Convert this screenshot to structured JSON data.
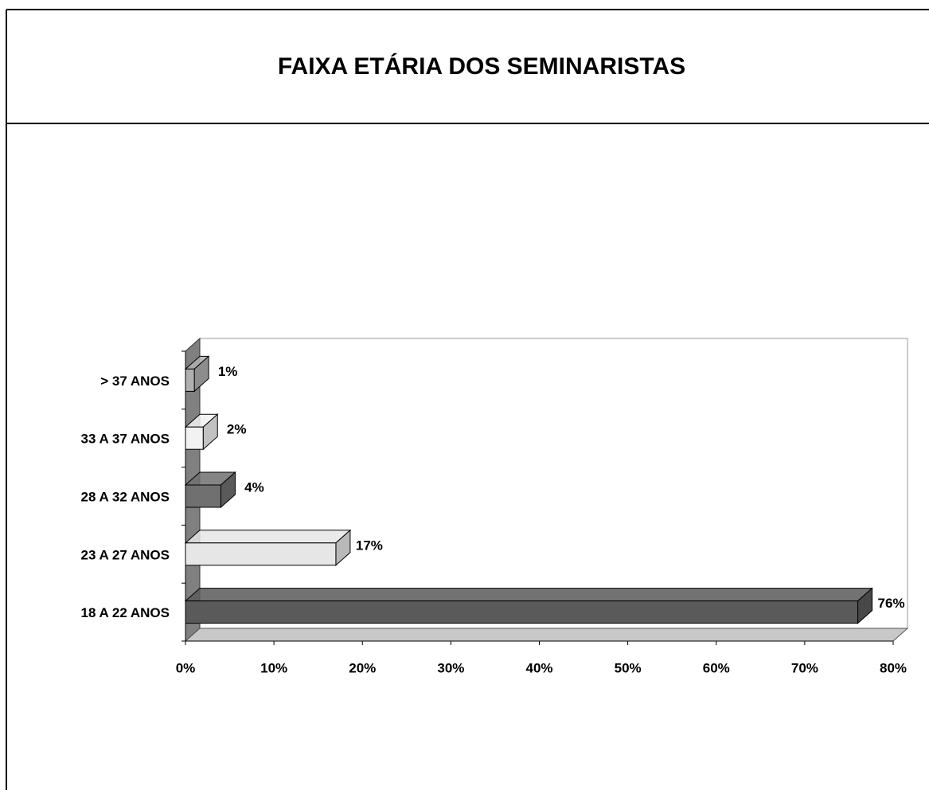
{
  "chart_data": {
    "type": "bar3d_horizontal",
    "title": "FAIXA ETÁRIA DOS SEMINARISTAS",
    "categories": [
      "18 A 22 ANOS",
      "23 A 27 ANOS",
      "28 A 32 ANOS",
      "33 A 37 ANOS",
      ">  37 ANOS"
    ],
    "values": [
      76,
      17,
      4,
      2,
      1
    ],
    "value_labels": [
      "76%",
      "17%",
      "4%",
      "2%",
      "1%"
    ],
    "colors": [
      "#5a5a5a",
      "#e6e6e6",
      "#707070",
      "#f2f2f2",
      "#b0b0b0"
    ],
    "xlim": [
      0,
      80
    ],
    "xticks": [
      {
        "value": 0,
        "label": "0%"
      },
      {
        "value": 10,
        "label": "10%"
      },
      {
        "value": 20,
        "label": "20%"
      },
      {
        "value": 30,
        "label": "30%"
      },
      {
        "value": 40,
        "label": "40%"
      },
      {
        "value": 50,
        "label": "50%"
      },
      {
        "value": 60,
        "label": "60%"
      },
      {
        "value": 70,
        "label": "70%"
      },
      {
        "value": 80,
        "label": "80%"
      }
    ],
    "grid": false
  }
}
